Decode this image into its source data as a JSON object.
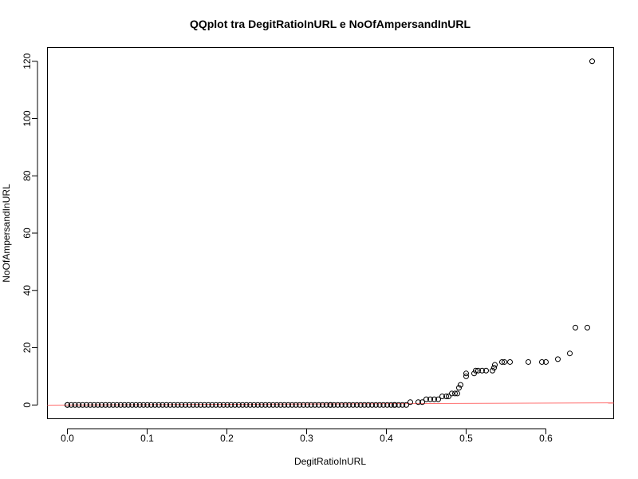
{
  "chart_data": {
    "type": "scatter",
    "title": "QQplot tra DegitRatioInURL e NoOfAmpersandInURL",
    "xlabel": "DegitRatioInURL",
    "ylabel": "NoOfAmpersandInURL",
    "xlim": [
      -0.025,
      0.685
    ],
    "ylim": [
      -4.8,
      124.8
    ],
    "xticks": [
      0.0,
      0.1,
      0.2,
      0.3,
      0.4,
      0.5,
      0.6
    ],
    "xtick_labels": [
      "0.0",
      "0.1",
      "0.2",
      "0.3",
      "0.4",
      "0.5",
      "0.6"
    ],
    "yticks": [
      0,
      20,
      40,
      60,
      80,
      100,
      120
    ],
    "ytick_labels": [
      "0",
      "20",
      "40",
      "60",
      "80",
      "100",
      "120"
    ],
    "grid": false,
    "legend": "none",
    "colors": {
      "points": "#000000",
      "reference_line": "#ff6f6f"
    },
    "reference_line": {
      "x": [
        -0.025,
        0.685
      ],
      "y": [
        -0.05,
        0.75
      ]
    },
    "zero_run": {
      "x_start": 0.0,
      "x_end": 0.425,
      "y": 0,
      "note_count": 90
    },
    "points": {
      "x": [
        0.0,
        0.33,
        0.41,
        0.43,
        0.44,
        0.445,
        0.45,
        0.455,
        0.46,
        0.465,
        0.47,
        0.475,
        0.478,
        0.482,
        0.486,
        0.489,
        0.491,
        0.493,
        0.5,
        0.5,
        0.51,
        0.512,
        0.515,
        0.52,
        0.525,
        0.533,
        0.535,
        0.536,
        0.545,
        0.548,
        0.555,
        0.578,
        0.595,
        0.6,
        0.615,
        0.63,
        0.637,
        0.652,
        0.658
      ],
      "y": [
        0,
        0,
        0,
        1,
        1,
        1,
        2,
        2,
        2,
        2,
        3,
        3,
        3,
        4,
        4,
        4,
        6,
        7,
        10,
        11,
        11,
        12,
        12,
        12,
        12,
        12,
        13,
        14,
        15,
        15,
        15,
        15,
        15,
        15,
        16,
        18,
        27,
        27,
        120
      ]
    }
  }
}
